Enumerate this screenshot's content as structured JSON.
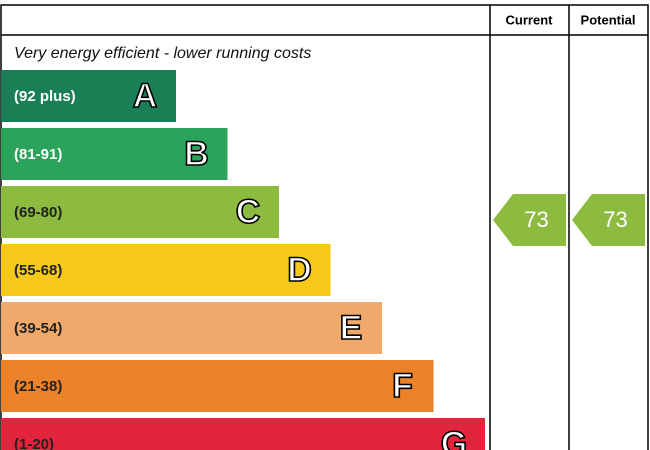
{
  "header": {
    "columns": [
      "Current",
      "Potential"
    ]
  },
  "subtitle": "Very energy efficient - lower running costs",
  "bands": [
    {
      "range": "(92 plus)",
      "letter": "A",
      "color": "#1b7f56",
      "text_color": "#ffffff"
    },
    {
      "range": "(81-91)",
      "letter": "B",
      "color": "#2ca35a",
      "text_color": "#ffffff"
    },
    {
      "range": "(69-80)",
      "letter": "C",
      "color": "#8cbb3f",
      "text_color": "#222222"
    },
    {
      "range": "(55-68)",
      "letter": "D",
      "color": "#f6c918",
      "text_color": "#222222"
    },
    {
      "range": "(39-54)",
      "letter": "E",
      "color": "#f0a96b",
      "text_color": "#222222"
    },
    {
      "range": "(21-38)",
      "letter": "F",
      "color": "#eb8128",
      "text_color": "#222222"
    },
    {
      "range": "(1-20)",
      "letter": "G",
      "color": "#e1253c",
      "text_color": "#222222"
    }
  ],
  "current": {
    "value": "73",
    "color": "#8cbb3f"
  },
  "potential": {
    "value": "73",
    "color": "#8cbb3f"
  }
}
